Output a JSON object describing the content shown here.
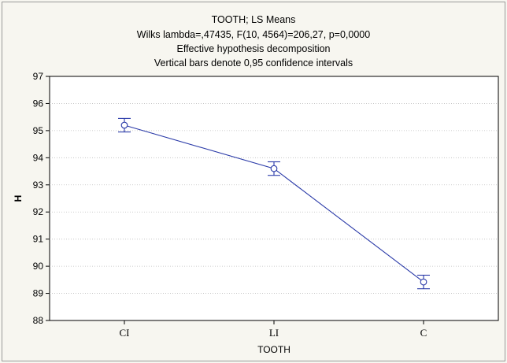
{
  "chart_data": {
    "type": "line",
    "title_lines": [
      "TOOTH; LS Means",
      "Wilks lambda=,47435, F(10, 4564)=206,27, p=0,0000",
      "Effective hypothesis decomposition",
      "Vertical bars denote 0,95 confidence intervals"
    ],
    "xlabel": "TOOTH",
    "ylabel": "H",
    "categories": [
      "CI",
      "LI",
      "C"
    ],
    "series": [
      {
        "values": [
          95.2,
          93.6,
          89.42
        ],
        "ci_lower": [
          94.95,
          93.35,
          89.17
        ],
        "ci_upper": [
          95.45,
          93.85,
          89.67
        ]
      }
    ],
    "ylim": [
      88,
      97
    ],
    "yticks": [
      "97",
      "96",
      "95",
      "94",
      "93",
      "92",
      "91",
      "90",
      "89",
      "88"
    ],
    "grid": true,
    "legend": "none",
    "colors": {
      "line": "#2a3aa8",
      "marker_fill": "#ffffff",
      "background_outer": "#f7f6f0",
      "background_plot": "#ffffff",
      "grid": "#bdbdbd"
    }
  }
}
